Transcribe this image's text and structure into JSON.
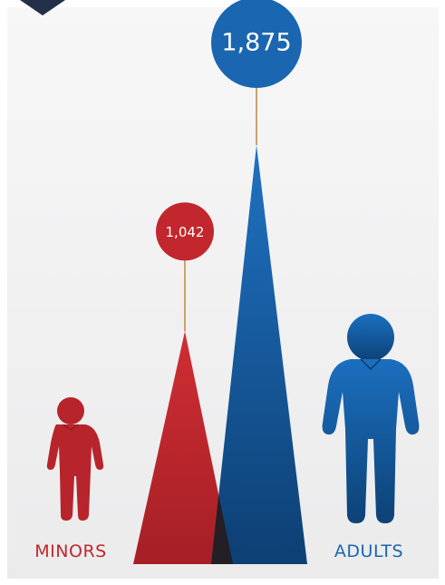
{
  "chart_data": {
    "type": "bar",
    "title": "",
    "xlabel": "",
    "ylabel": "",
    "categories": [
      "MINORS",
      "ADULTS"
    ],
    "values": [
      1042,
      1875
    ],
    "value_labels": [
      "1,042",
      "1,875"
    ],
    "colors": {
      "minors": "#c1272d",
      "adults": "#1b66b0",
      "overlap": "#231f24",
      "connector": "#c9a36b",
      "header_tab": "#233048"
    },
    "icons": [
      "child-figure-icon",
      "adult-figure-icon"
    ],
    "grid": false,
    "legend": "none"
  }
}
